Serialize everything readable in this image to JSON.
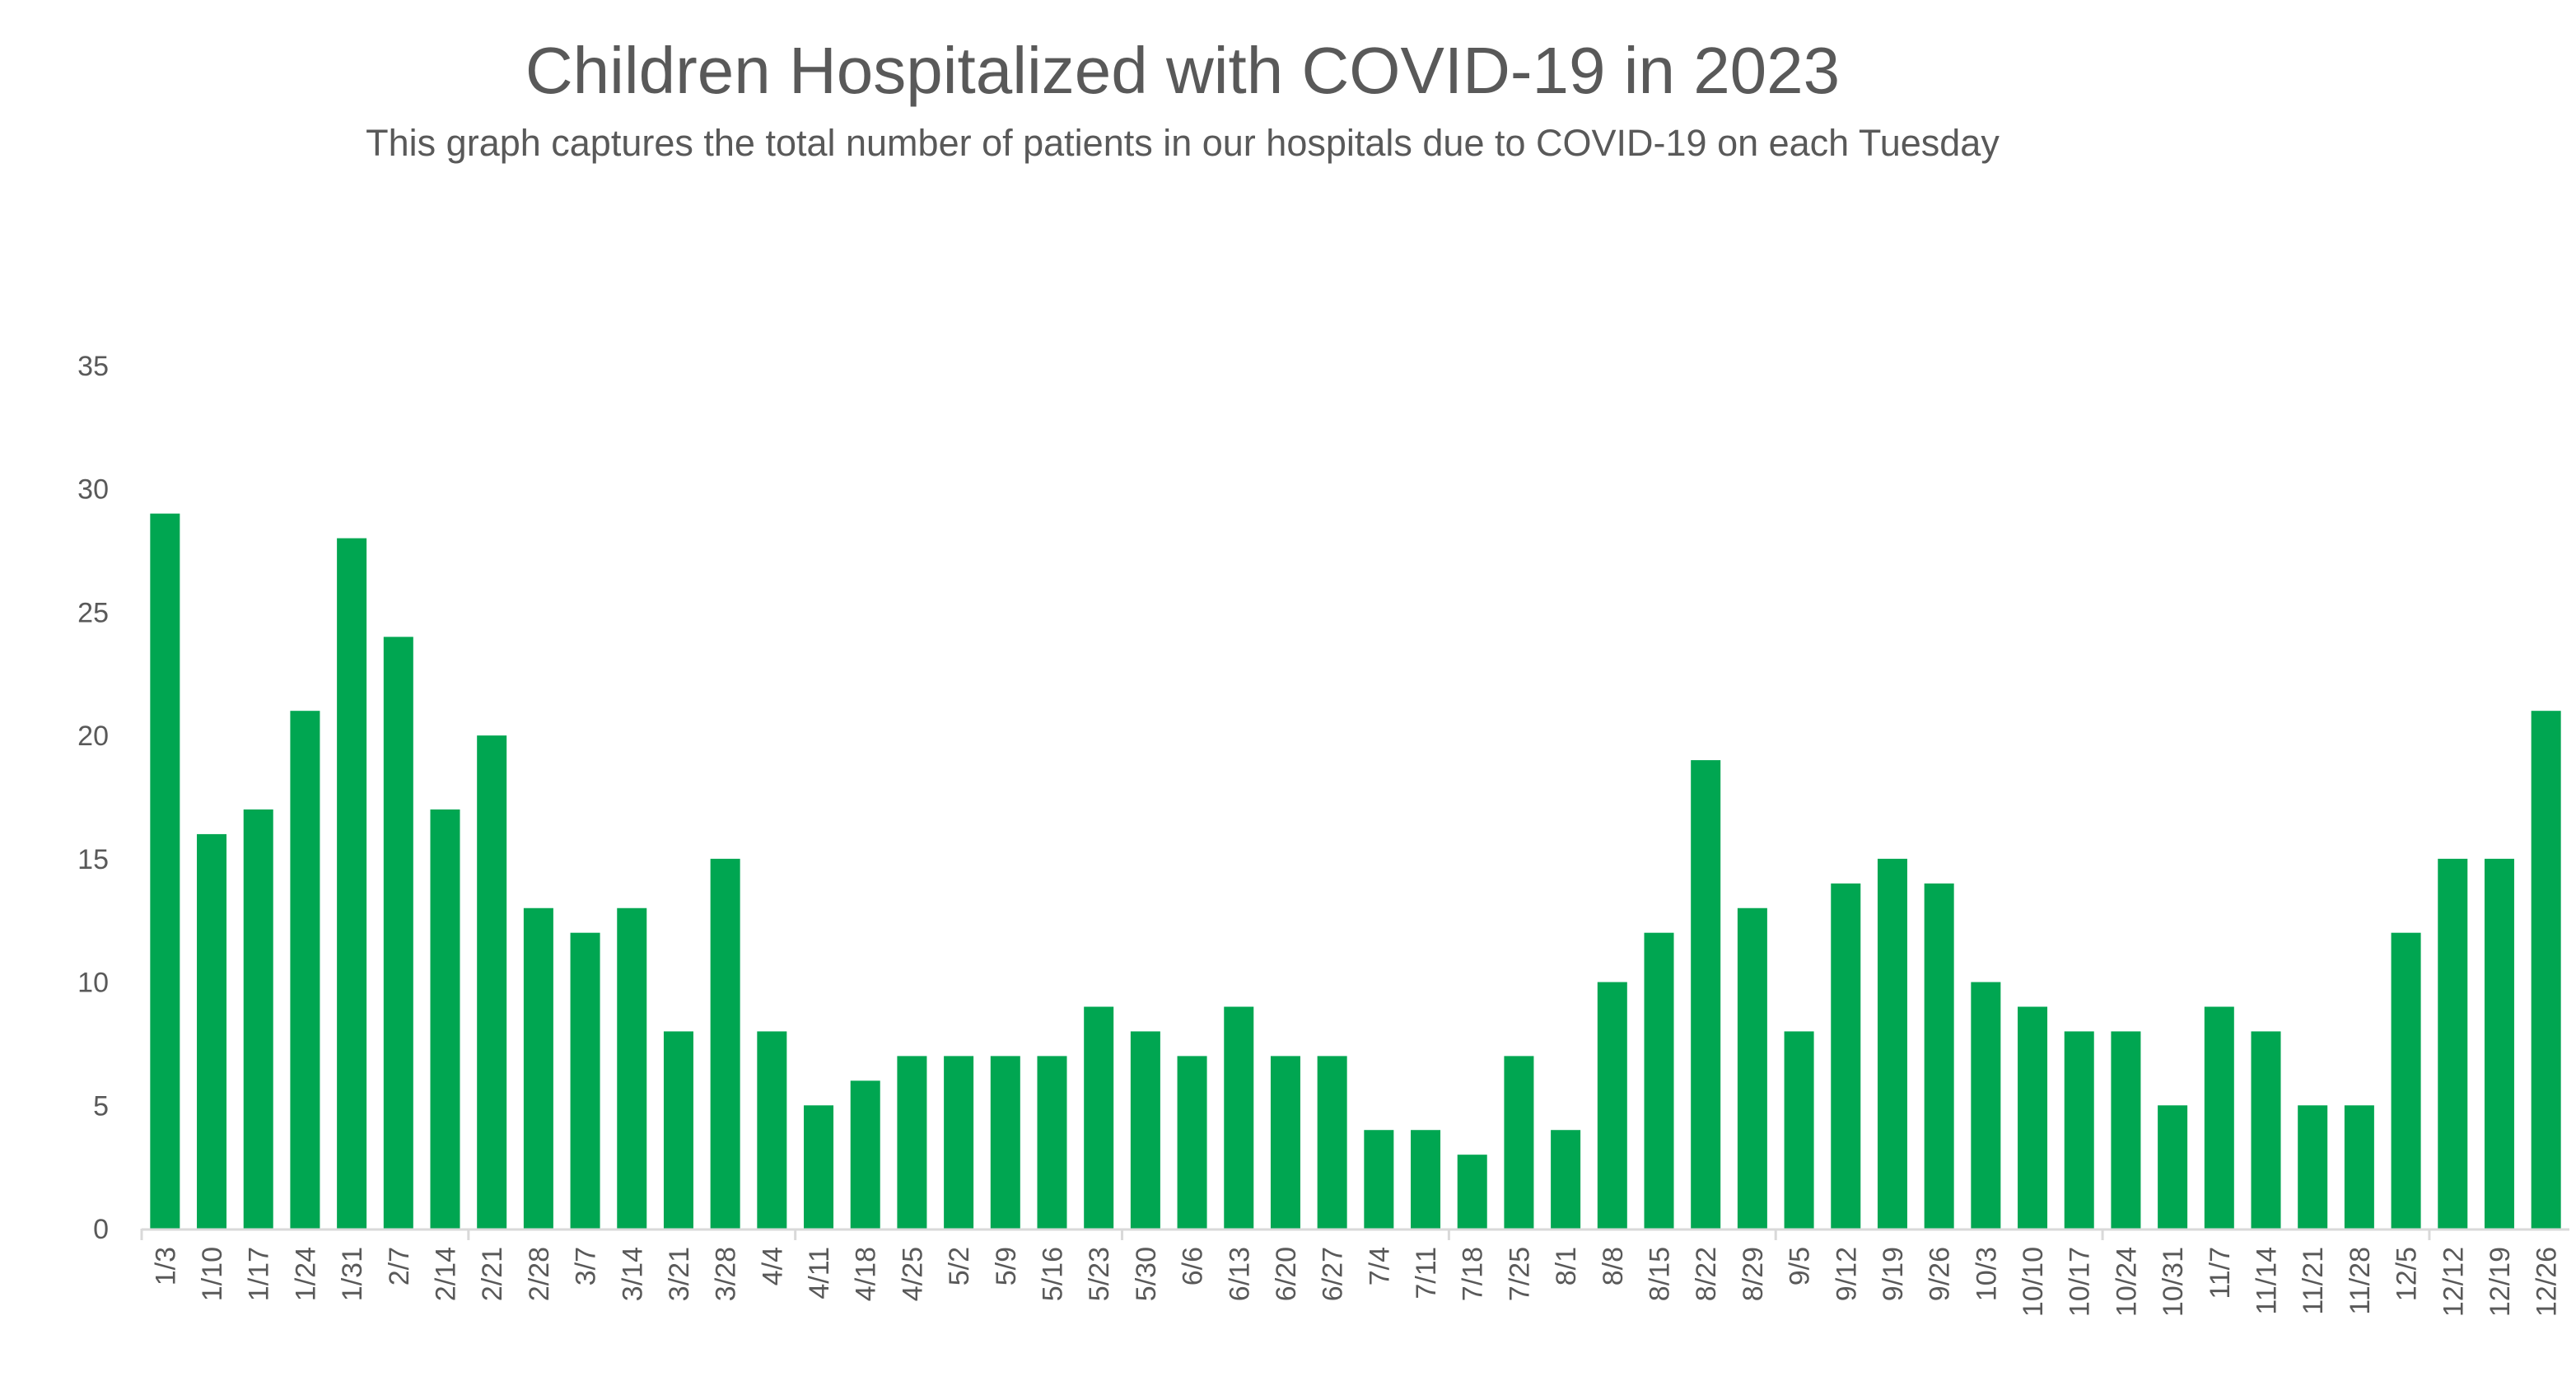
{
  "title": "Children Hospitalized with COVID-19 in 2023",
  "subtitle": "This graph captures the total number of patients in our hospitals due to COVID-19 on each Tuesday",
  "chart_data": {
    "type": "bar",
    "title": "Children Hospitalized with COVID-19 in 2023",
    "subtitle": "This graph captures the total number of patients in our hospitals due to COVID-19 on each Tuesday",
    "xlabel": "",
    "ylabel": "",
    "ylim": [
      0,
      35
    ],
    "yticks": [
      0,
      5,
      10,
      15,
      20,
      25,
      30,
      35
    ],
    "grid": false,
    "legend": "none",
    "bar_color": "#00A651",
    "categories": [
      "1/3",
      "1/10",
      "1/17",
      "1/24",
      "1/31",
      "2/7",
      "2/14",
      "2/21",
      "2/28",
      "3/7",
      "3/14",
      "3/21",
      "3/28",
      "4/4",
      "4/11",
      "4/18",
      "4/25",
      "5/2",
      "5/9",
      "5/16",
      "5/23",
      "5/30",
      "6/6",
      "6/13",
      "6/20",
      "6/27",
      "7/4",
      "7/11",
      "7/18",
      "7/25",
      "8/1",
      "8/8",
      "8/15",
      "8/22",
      "8/29",
      "9/5",
      "9/12",
      "9/19",
      "9/26",
      "10/3",
      "10/10",
      "10/17",
      "10/24",
      "10/31",
      "11/7",
      "11/14",
      "11/21",
      "11/28",
      "12/5",
      "12/12",
      "12/19",
      "12/26"
    ],
    "values": [
      29,
      16,
      17,
      21,
      28,
      24,
      17,
      20,
      13,
      12,
      13,
      8,
      15,
      8,
      5,
      6,
      7,
      7,
      7,
      7,
      9,
      8,
      7,
      9,
      7,
      7,
      4,
      4,
      3,
      7,
      4,
      10,
      12,
      19,
      13,
      8,
      14,
      15,
      14,
      10,
      9,
      8,
      8,
      5,
      9,
      8,
      5,
      5,
      12,
      15,
      15,
      21
    ]
  }
}
